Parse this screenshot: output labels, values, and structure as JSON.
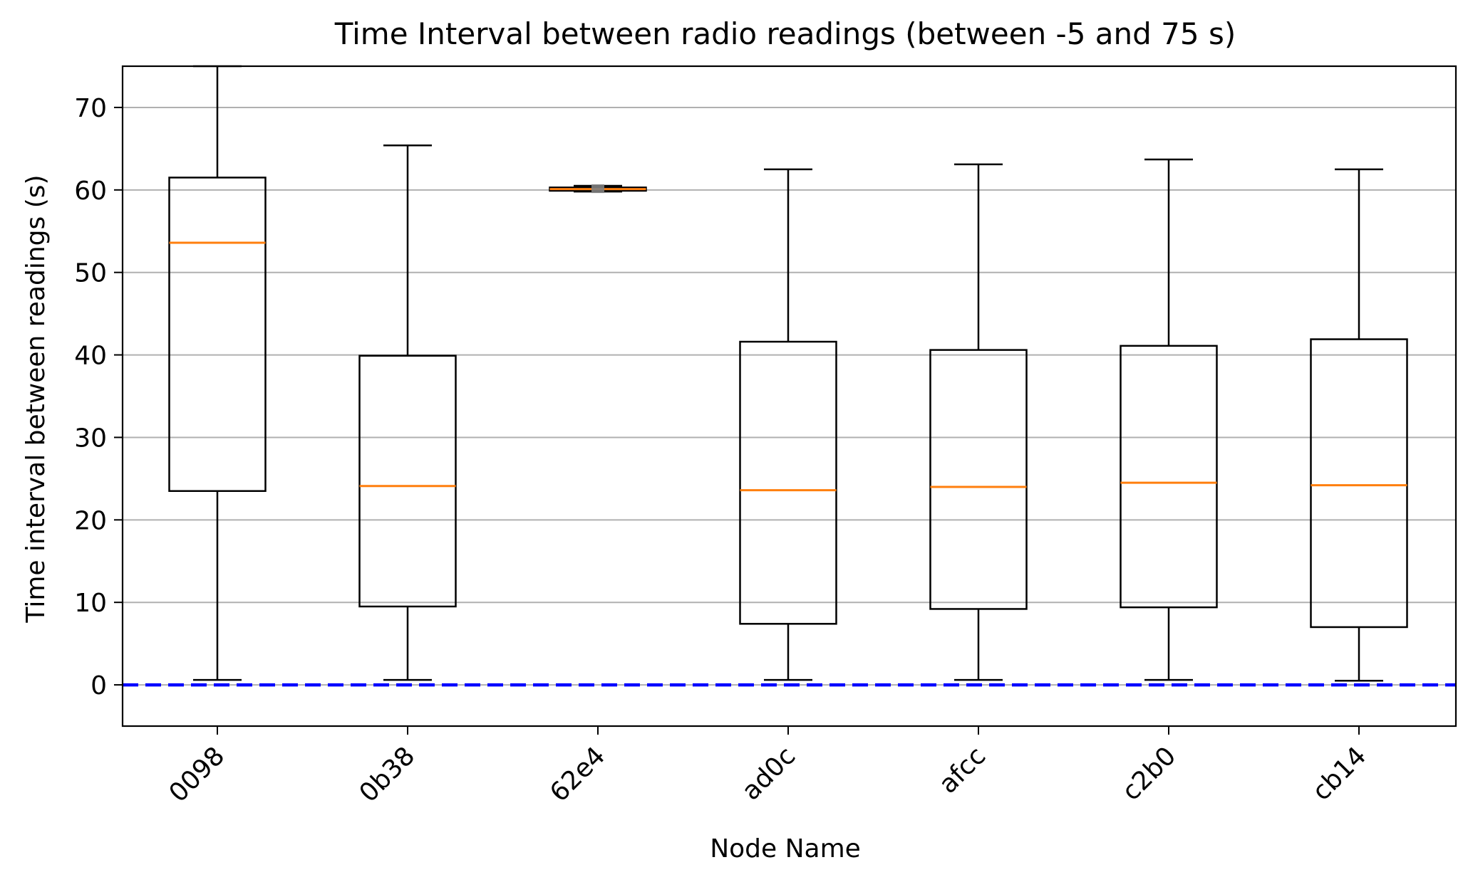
{
  "chart_data": {
    "type": "boxplot",
    "title": "Time Interval between radio readings (between -5 and 75 s)",
    "xlabel": "Node Name",
    "ylabel": "Time interval between readings (s)",
    "ylim": [
      -5,
      75
    ],
    "yticks": [
      0,
      10,
      20,
      30,
      40,
      50,
      60,
      70
    ],
    "grid": "y-major",
    "categories": [
      "0098",
      "0b38",
      "62e4",
      "ad0c",
      "afcc",
      "c2b0",
      "cb14"
    ],
    "boxes": [
      {
        "whisker_low": 0.6,
        "q1": 23.5,
        "median": 53.6,
        "q3": 61.5,
        "whisker_high": 75
      },
      {
        "whisker_low": 0.6,
        "q1": 9.5,
        "median": 24.1,
        "q3": 39.9,
        "whisker_high": 65.4
      },
      {
        "whisker_low": 59.8,
        "q1": 59.9,
        "median": 60.1,
        "q3": 60.3,
        "whisker_high": 60.5
      },
      {
        "whisker_low": 0.6,
        "q1": 7.4,
        "median": 23.6,
        "q3": 41.6,
        "whisker_high": 62.5
      },
      {
        "whisker_low": 0.6,
        "q1": 9.2,
        "median": 24.0,
        "q3": 40.6,
        "whisker_high": 63.1
      },
      {
        "whisker_low": 0.6,
        "q1": 9.4,
        "median": 24.5,
        "q3": 41.1,
        "whisker_high": 63.7
      },
      {
        "whisker_low": 0.5,
        "q1": 7.0,
        "median": 24.2,
        "q3": 41.9,
        "whisker_high": 62.5
      }
    ],
    "reference_line": {
      "y": 0,
      "style": "dashed",
      "color": "#0000ff"
    },
    "colors": {
      "box": "#000000",
      "median": "#ff7f0e",
      "grid": "#b0b0b0",
      "outlier": "#808080"
    }
  }
}
